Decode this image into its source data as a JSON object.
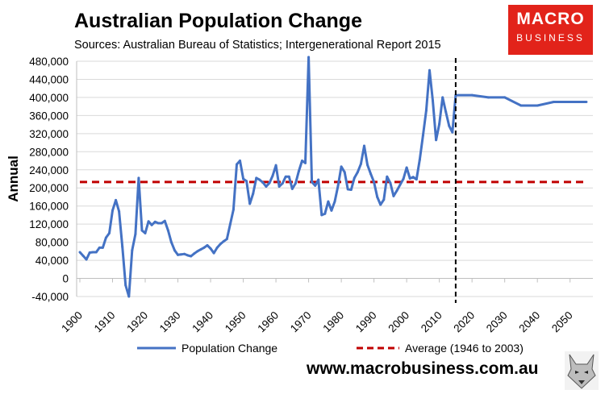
{
  "title": "Australian Population Change",
  "subtitle": "Sources: Australian Bureau of Statistics; Intergenerational Report 2015",
  "logo": {
    "line1": "MACRO",
    "line2": "BUSINESS"
  },
  "website": "www.macrobusiness.com.au",
  "colors": {
    "series": "#4472c4",
    "average": "#c00000",
    "grid": "#d9d9d9",
    "logo": "#e2231a"
  },
  "chart_data": {
    "type": "line",
    "title": "Australian Population Change",
    "ylabel": "Annual",
    "xlabel": "",
    "ylim": [
      -40000,
      480000
    ],
    "xlim": [
      1900,
      2056
    ],
    "yticks": [
      -40000,
      0,
      40000,
      80000,
      120000,
      160000,
      200000,
      240000,
      280000,
      320000,
      360000,
      400000,
      440000,
      480000
    ],
    "ytick_labels": [
      "-40,000",
      "0",
      "40,000",
      "80,000",
      "120,000",
      "160,000",
      "200,000",
      "240,000",
      "280,000",
      "320,000",
      "360,000",
      "400,000",
      "440,000",
      "480,000"
    ],
    "xticks": [
      1900,
      1910,
      1920,
      1930,
      1940,
      1950,
      1960,
      1970,
      1980,
      1990,
      2000,
      2010,
      2020,
      2030,
      2040,
      2050
    ],
    "xtick_labels": [
      "1900",
      "1910",
      "1920",
      "1930",
      "1940",
      "1950",
      "1960",
      "1970",
      "1980",
      "1990",
      "2000",
      "2010",
      "2020",
      "2030",
      "2040",
      "2050"
    ],
    "grid": true,
    "legend_position": "bottom",
    "series": [
      {
        "name": "Population Change",
        "style": "solid",
        "x": [
          1900,
          1901,
          1902,
          1903,
          1904,
          1905,
          1906,
          1907,
          1908,
          1909,
          1910,
          1911,
          1912,
          1913,
          1914,
          1915,
          1916,
          1917,
          1918,
          1919,
          1920,
          1921,
          1922,
          1923,
          1924,
          1925,
          1926,
          1927,
          1928,
          1929,
          1930,
          1931,
          1932,
          1933,
          1934,
          1935,
          1936,
          1937,
          1938,
          1939,
          1940,
          1941,
          1942,
          1943,
          1944,
          1945,
          1946,
          1947,
          1948,
          1949,
          1950,
          1951,
          1952,
          1953,
          1954,
          1955,
          1956,
          1957,
          1958,
          1959,
          1960,
          1961,
          1962,
          1963,
          1964,
          1965,
          1966,
          1967,
          1968,
          1969,
          1970,
          1971,
          1972,
          1973,
          1974,
          1975,
          1976,
          1977,
          1978,
          1979,
          1980,
          1981,
          1982,
          1983,
          1984,
          1985,
          1986,
          1987,
          1988,
          1989,
          1990,
          1991,
          1992,
          1993,
          1994,
          1995,
          1996,
          1997,
          1998,
          1999,
          2000,
          2001,
          2002,
          2003,
          2004,
          2005,
          2006,
          2007,
          2008,
          2009,
          2010,
          2011,
          2012,
          2013,
          2014,
          2015,
          2020,
          2025,
          2030,
          2035,
          2040,
          2045,
          2050,
          2055
        ],
        "values": [
          58000,
          50000,
          42000,
          57000,
          58000,
          58000,
          68000,
          68000,
          90000,
          100000,
          150000,
          173000,
          148000,
          70000,
          -15000,
          -40000,
          62000,
          98000,
          222000,
          106000,
          100000,
          126000,
          118000,
          125000,
          122000,
          122000,
          127000,
          106000,
          80000,
          62000,
          52000,
          53000,
          54000,
          51000,
          49000,
          55000,
          60000,
          64000,
          68000,
          73000,
          66000,
          56000,
          68000,
          76000,
          82000,
          87000,
          120000,
          152000,
          252000,
          260000,
          220000,
          215000,
          165000,
          187000,
          222000,
          218000,
          212000,
          203000,
          211000,
          227000,
          250000,
          203000,
          210000,
          225000,
          225000,
          198000,
          210000,
          237000,
          260000,
          255000,
          489000,
          213000,
          205000,
          218000,
          140000,
          143000,
          170000,
          150000,
          170000,
          205000,
          247000,
          235000,
          197000,
          196000,
          222000,
          235000,
          253000,
          293000,
          251000,
          231000,
          213000,
          180000,
          163000,
          174000,
          225000,
          211000,
          182000,
          194000,
          207000,
          220000,
          245000,
          221000,
          224000,
          219000,
          262000,
          316000,
          371000,
          460000,
          393000,
          306000,
          341000,
          400000,
          368000,
          337000,
          323000,
          405000,
          405000,
          400000,
          400000,
          382000,
          382000,
          390000,
          390000,
          390000
        ]
      },
      {
        "name": "Average (1946 to 2003)",
        "style": "dashed",
        "x": [
          1900,
          2055
        ],
        "values": [
          213000,
          213000
        ]
      }
    ],
    "annotations": [
      {
        "type": "vertical-dashed-line",
        "x": 2015,
        "meaning": "start of projections"
      }
    ]
  }
}
